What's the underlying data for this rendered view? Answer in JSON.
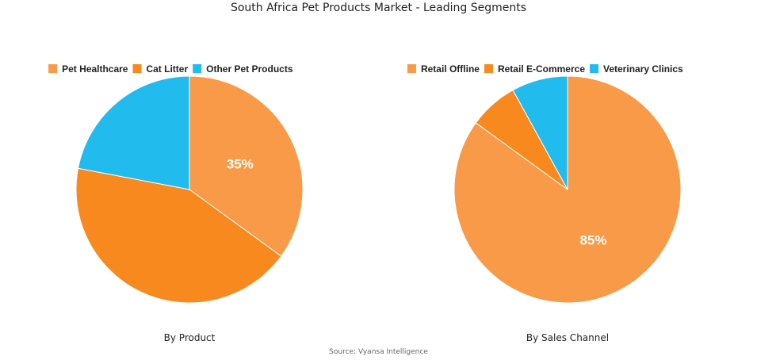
{
  "title": "South Africa Pet Products Market - Leading Segments",
  "source": "Source: Vyansa Intelligence",
  "chart_data": [
    {
      "type": "pie",
      "subtitle": "By Product",
      "labels": [
        "Pet Healthcare",
        "Cat Litter",
        "Other Pet Products"
      ],
      "values": [
        35,
        43,
        22
      ],
      "colors": [
        "#F99A48",
        "#F7891F",
        "#22BBEE"
      ],
      "data_labels": [
        "35%",
        "",
        ""
      ],
      "legend": "top"
    },
    {
      "type": "pie",
      "subtitle": "By Sales Channel",
      "labels": [
        "Retail Offline",
        "Retail E-Commerce",
        "Veterinary Clinics"
      ],
      "values": [
        85,
        7,
        8
      ],
      "colors": [
        "#F99A48",
        "#F7891F",
        "#22BBEE"
      ],
      "data_labels": [
        "85%",
        "",
        ""
      ],
      "legend": "top"
    }
  ]
}
